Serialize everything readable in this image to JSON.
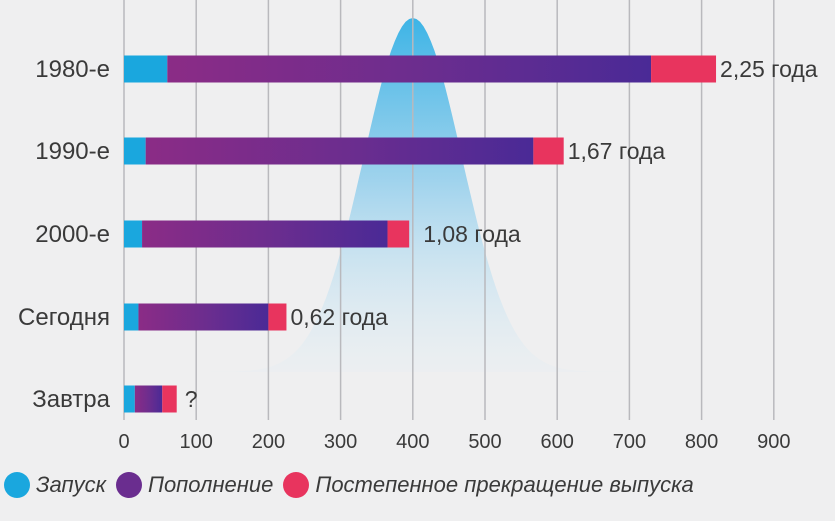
{
  "chart_data": {
    "type": "bar",
    "stacked": true,
    "orientation": "horizontal",
    "categories": [
      "1980-е",
      "1990-е",
      "2000-е",
      "Сегодня",
      "Завтра"
    ],
    "series": [
      {
        "name": "Запуск",
        "color": "#1aa7de",
        "values": [
          60,
          30,
          25,
          20,
          15
        ]
      },
      {
        "name": "Пополнение",
        "color": "#6a2d8f",
        "values": [
          670,
          537,
          340,
          180,
          38
        ]
      },
      {
        "name": "Постепенное прекращение выпуска",
        "color": "#e8345e",
        "values": [
          90,
          42,
          30,
          25,
          20
        ]
      }
    ],
    "data_labels": [
      "2,25 года",
      "1,67 года",
      "1,08 года",
      "0,62 года",
      "?"
    ],
    "x_ticks": [
      "0",
      "100",
      "200",
      "300",
      "400",
      "500",
      "600",
      "700",
      "800",
      "900"
    ],
    "xlim": [
      0,
      900
    ],
    "grid": true,
    "legend_position": "bottom",
    "background_shape": "bell-curve"
  }
}
